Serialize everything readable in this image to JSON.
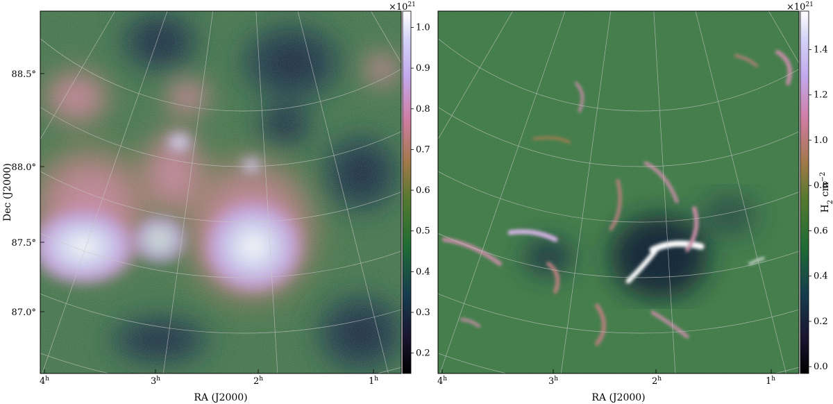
{
  "chart_data": [
    {
      "type": "heatmap",
      "xlabel": "RA (J2000)",
      "ylabel": "Dec (J2000)",
      "x_ticks": [
        "4h",
        "3h",
        "2h",
        "1h"
      ],
      "y_ticks": [
        "88.5°",
        "88.0°",
        "87.5°",
        "87.0°"
      ],
      "grid": true,
      "colorbar": {
        "exponent_label": "×10^21",
        "range": [
          0.15,
          1.04
        ],
        "ticks": [
          0.2,
          0.3,
          0.4,
          0.5,
          0.6,
          0.7,
          0.8,
          0.9,
          1.0
        ],
        "tick_labels": [
          "0.2",
          "0.3",
          "0.4",
          "0.5",
          "0.6",
          "0.7",
          "0.8",
          "0.9",
          "1.0"
        ]
      }
    },
    {
      "type": "heatmap",
      "xlabel": "RA (J2000)",
      "ylabel": "",
      "x_ticks": [
        "4h",
        "3h",
        "2h",
        "1h"
      ],
      "grid": true,
      "colorbar": {
        "exponent_label": "×10^21",
        "label": "H2 cm^-2",
        "range": [
          -0.03,
          1.57
        ],
        "ticks": [
          0.0,
          0.2,
          0.4,
          0.6,
          0.8,
          1.0,
          1.2,
          1.4
        ],
        "tick_labels": [
          "0.0",
          "0.2",
          "0.4",
          "0.6",
          "0.8",
          "1.0",
          "1.2",
          "1.4"
        ]
      }
    }
  ],
  "colormap": "cubehelix",
  "colormap_colors": [
    "#000000",
    "#1a1530",
    "#163d4e",
    "#1f6c34",
    "#54792f",
    "#a07949",
    "#d07ca2",
    "#c2a9ec",
    "#d3d2f7",
    "#ffffff"
  ]
}
